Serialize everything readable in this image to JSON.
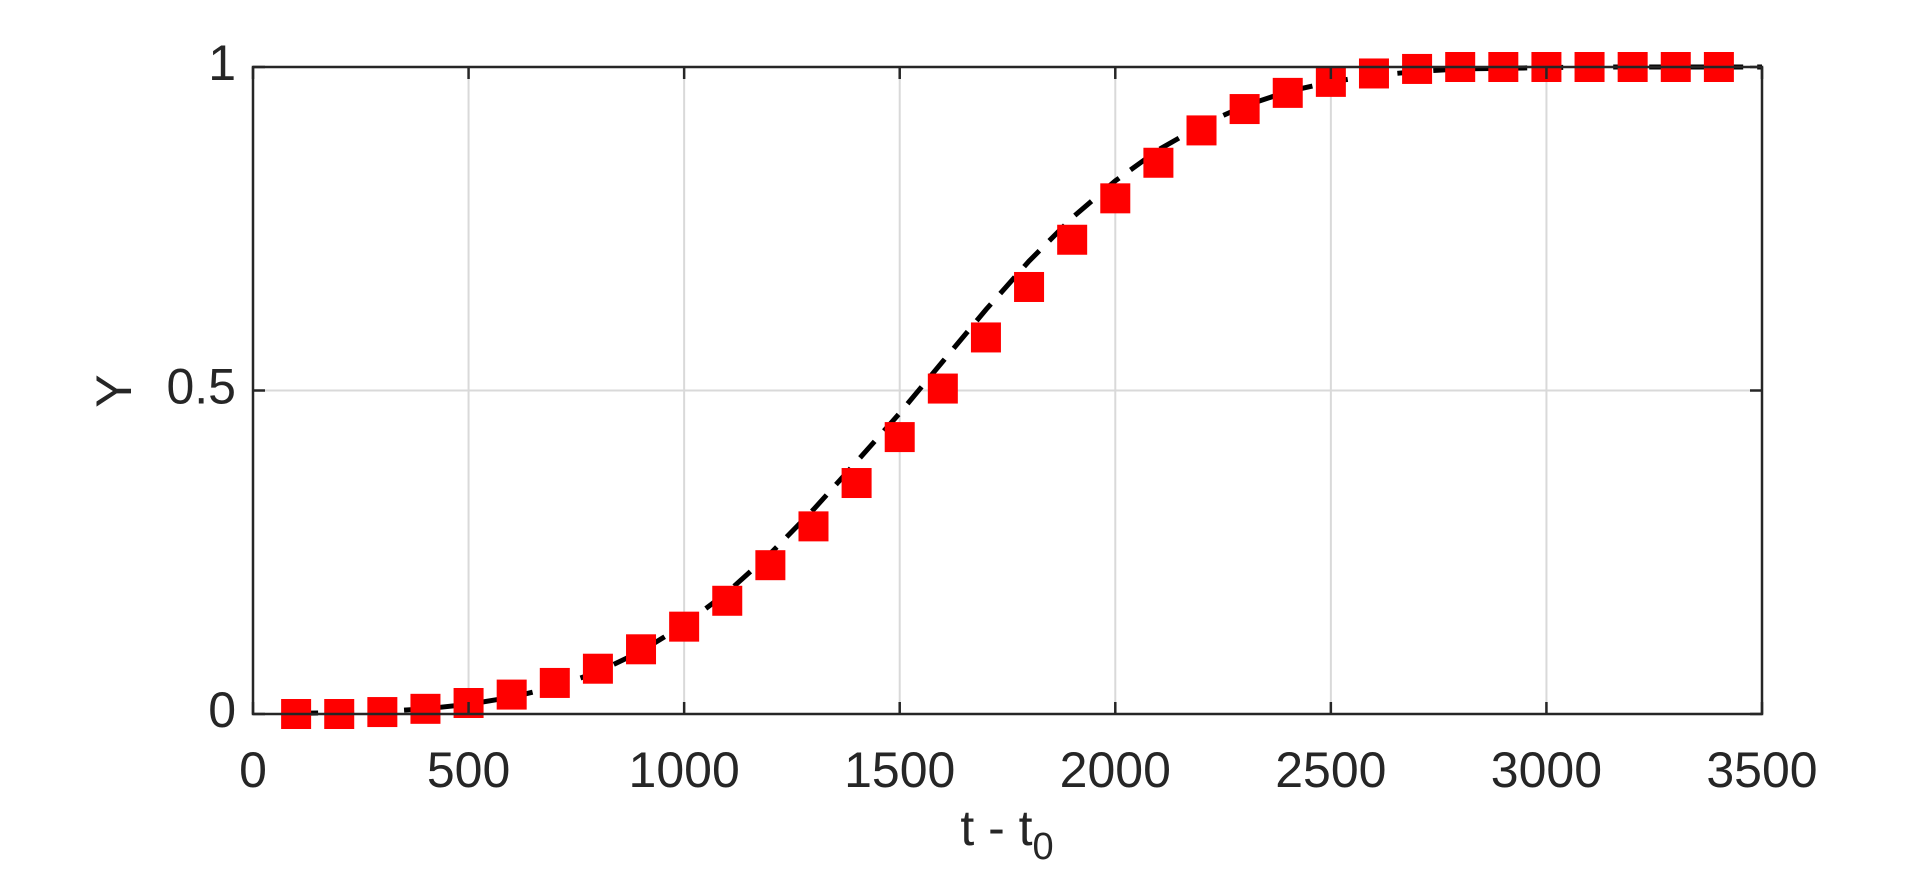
{
  "chart_data": {
    "type": "scatter",
    "xlabel": {
      "text": "t - t",
      "subscript": "0"
    },
    "ylabel": "Y",
    "xlim": [
      0,
      3500
    ],
    "xticks": [
      0,
      500,
      1000,
      1500,
      2000,
      2500,
      3000,
      3500
    ],
    "ylim": [
      0,
      1
    ],
    "yticks": [
      0,
      0.5,
      1
    ],
    "grid": true,
    "series": [
      {
        "type": "line",
        "color": "#000000",
        "dashed": true,
        "x": [
          100,
          200,
          300,
          400,
          500,
          600,
          700,
          800,
          900,
          1000,
          1100,
          1200,
          1300,
          1400,
          1500,
          1600,
          1700,
          1800,
          1900,
          2000,
          2100,
          2200,
          2300,
          2400,
          2500,
          2600,
          2700,
          2800,
          2900,
          3000,
          3100,
          3200,
          3300,
          3400,
          3500
        ],
        "values": [
          0.001,
          0.002,
          0.004,
          0.008,
          0.015,
          0.026,
          0.042,
          0.065,
          0.097,
          0.138,
          0.188,
          0.248,
          0.316,
          0.39,
          0.465,
          0.545,
          0.625,
          0.7,
          0.767,
          0.824,
          0.872,
          0.91,
          0.94,
          0.962,
          0.977,
          0.987,
          0.993,
          0.997,
          0.998,
          0.999,
          1,
          1,
          1,
          1,
          1
        ]
      },
      {
        "type": "scatter",
        "color": "#ff0000",
        "marker": "square",
        "x": [
          100,
          200,
          300,
          400,
          500,
          600,
          700,
          800,
          900,
          1000,
          1100,
          1200,
          1300,
          1400,
          1500,
          1600,
          1700,
          1800,
          1900,
          2000,
          2100,
          2200,
          2300,
          2400,
          2500,
          2600,
          2700,
          2800,
          2900,
          3000,
          3100,
          3200,
          3300,
          3400
        ],
        "values": [
          0,
          0,
          0.003,
          0.008,
          0.017,
          0.03,
          0.048,
          0.07,
          0.1,
          0.135,
          0.175,
          0.23,
          0.29,
          0.357,
          0.428,
          0.503,
          0.582,
          0.66,
          0.733,
          0.797,
          0.852,
          0.902,
          0.935,
          0.96,
          0.977,
          0.99,
          0.997,
          1,
          1,
          1,
          1,
          1,
          1,
          1
        ]
      }
    ]
  }
}
